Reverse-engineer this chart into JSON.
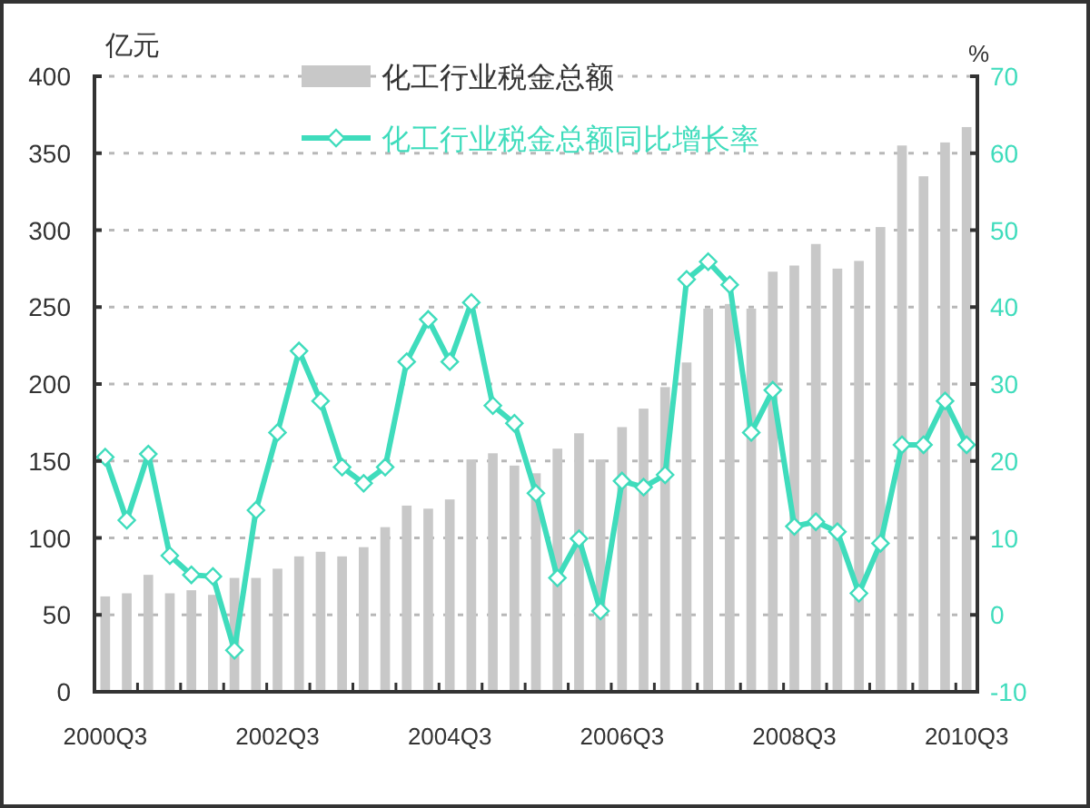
{
  "chart_data": {
    "type": "bar",
    "ylabel": "亿元",
    "y2label": "%",
    "categories": [
      "2000Q3",
      null,
      null,
      null,
      null,
      null,
      null,
      null,
      "2002Q3",
      null,
      null,
      null,
      null,
      null,
      null,
      null,
      "2004Q3",
      null,
      null,
      null,
      null,
      null,
      null,
      null,
      "2006Q3",
      null,
      null,
      null,
      null,
      null,
      null,
      null,
      "2008Q3",
      null,
      null,
      null,
      null,
      null,
      null,
      null,
      "2010Q3"
    ],
    "series": [
      {
        "name": "化工行业税金总额",
        "color": "#c8c8c8",
        "values": [
          62,
          64,
          76,
          64,
          66,
          63,
          74,
          74,
          80,
          88,
          91,
          88,
          94,
          107,
          121,
          119,
          125,
          151,
          155,
          147,
          142,
          158,
          168,
          151,
          172,
          184,
          198,
          214,
          249,
          252,
          249,
          273,
          277,
          291,
          275,
          280,
          302,
          355,
          335,
          357,
          367
        ]
      },
      {
        "name": "化工行业税金总额同比增长率",
        "type": "line",
        "axis": "y2",
        "color": "#3fdcbc",
        "values": [
          20.5,
          12.3,
          20.9,
          7.7,
          5.2,
          5.0,
          -4.6,
          13.6,
          23.7,
          34.3,
          27.8,
          19.2,
          17.1,
          19.2,
          32.9,
          38.4,
          32.9,
          40.6,
          27.2,
          24.9,
          15.8,
          4.8,
          9.9,
          0.5,
          17.4,
          16.6,
          18.2,
          43.6,
          45.9,
          42.9,
          23.7,
          29.2,
          11.5,
          12.1,
          10.8,
          2.8,
          9.3,
          22.1,
          22.1,
          27.8,
          22.1
        ]
      }
    ],
    "ylim": [
      0,
      400
    ],
    "yticks": [
      0,
      50,
      100,
      150,
      200,
      250,
      300,
      350,
      400
    ],
    "y2lim": [
      -10,
      70
    ],
    "y2ticks": [
      -10,
      0,
      10,
      20,
      30,
      40,
      50,
      60,
      70
    ],
    "grid": "y",
    "legend": "top",
    "marker": "diamond"
  }
}
